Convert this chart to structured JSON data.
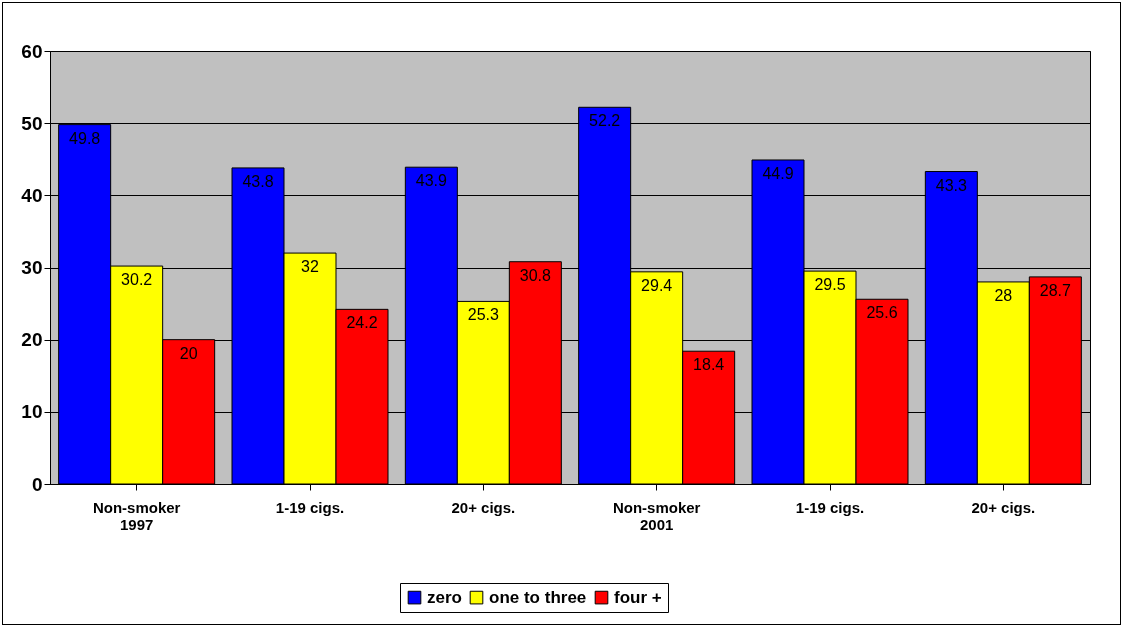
{
  "chart_data": {
    "type": "bar",
    "categories": [
      "Non-smoker\n1997",
      "1-19 cigs.",
      "20+ cigs.",
      "Non-smoker\n2001",
      "1-19 cigs.",
      "20+ cigs."
    ],
    "series": [
      {
        "name": "zero",
        "color": "#0000ff",
        "values": [
          49.8,
          43.8,
          43.9,
          52.2,
          44.9,
          43.3
        ]
      },
      {
        "name": "one to three",
        "color": "#ffff00",
        "values": [
          30.2,
          32,
          25.3,
          29.4,
          29.5,
          28
        ]
      },
      {
        "name": "four +",
        "color": "#ff0000",
        "values": [
          20,
          24.2,
          30.8,
          18.4,
          25.6,
          28.7
        ]
      }
    ],
    "ylim": [
      0,
      60
    ],
    "yticks": [
      0,
      10,
      20,
      30,
      40,
      50,
      60
    ],
    "grid": "y",
    "legend": "bottom",
    "data_labels": true
  }
}
